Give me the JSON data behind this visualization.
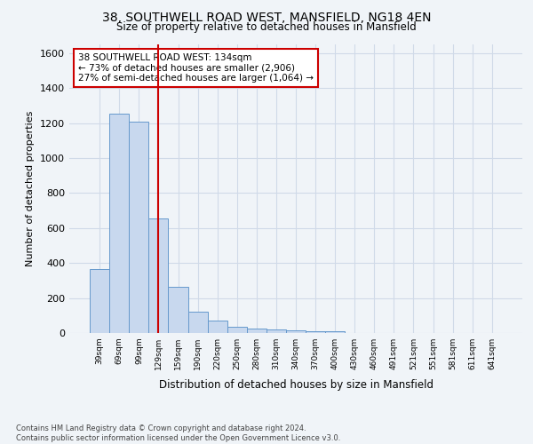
{
  "title1": "38, SOUTHWELL ROAD WEST, MANSFIELD, NG18 4EN",
  "title2": "Size of property relative to detached houses in Mansfield",
  "xlabel": "Distribution of detached houses by size in Mansfield",
  "ylabel": "Number of detached properties",
  "categories": [
    "39sqm",
    "69sqm",
    "99sqm",
    "129sqm",
    "159sqm",
    "190sqm",
    "220sqm",
    "250sqm",
    "280sqm",
    "310sqm",
    "340sqm",
    "370sqm",
    "400sqm",
    "430sqm",
    "460sqm",
    "491sqm",
    "521sqm",
    "551sqm",
    "581sqm",
    "611sqm",
    "641sqm"
  ],
  "values": [
    365,
    1255,
    1210,
    655,
    265,
    120,
    70,
    38,
    25,
    18,
    15,
    10,
    8,
    0,
    0,
    0,
    0,
    0,
    0,
    0,
    0
  ],
  "bar_color": "#c8d8ee",
  "bar_edge_color": "#6699cc",
  "highlight_line_color": "#cc0000",
  "annotation_text": "38 SOUTHWELL ROAD WEST: 134sqm\n← 73% of detached houses are smaller (2,906)\n27% of semi-detached houses are larger (1,064) →",
  "annotation_box_color": "#cc0000",
  "ylim": [
    0,
    1650
  ],
  "yticks": [
    0,
    200,
    400,
    600,
    800,
    1000,
    1200,
    1400,
    1600
  ],
  "footnote": "Contains HM Land Registry data © Crown copyright and database right 2024.\nContains public sector information licensed under the Open Government Licence v3.0.",
  "bg_color": "#f0f4f8",
  "plot_bg_color": "#f0f4f8",
  "grid_color": "#d0dae8"
}
